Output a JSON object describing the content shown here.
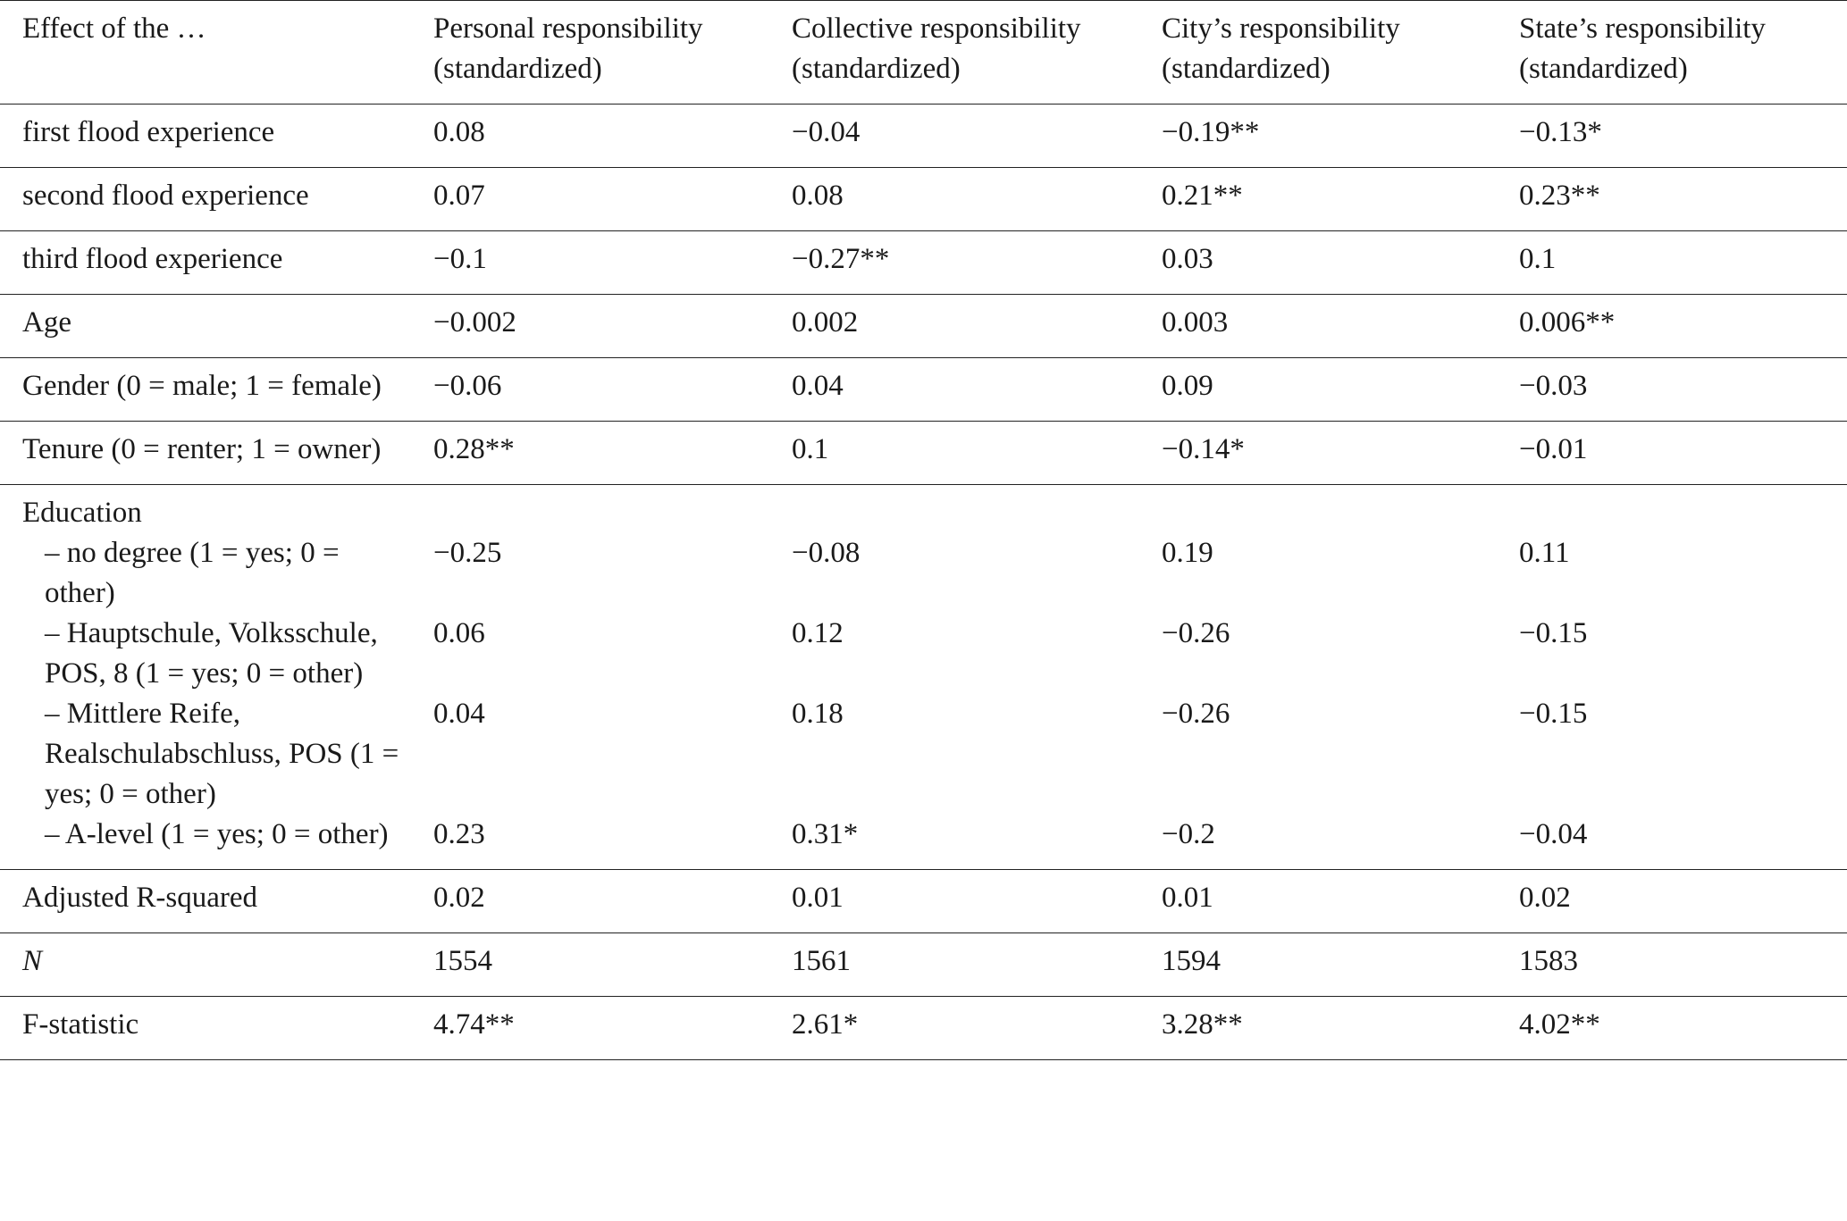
{
  "table": {
    "header": [
      "Effect of the …",
      "Personal responsibility (standardized)",
      "Collective responsibility (standardized)",
      "City’s responsibility (standardized)",
      "State’s responsibility (standardized)"
    ],
    "rows": [
      {
        "label": "first flood experience",
        "values": [
          "0.08",
          "−0.04",
          "−0.19**",
          "−0.13*"
        ]
      },
      {
        "label": "second flood experience",
        "values": [
          "0.07",
          "0.08",
          "0.21**",
          "0.23**"
        ]
      },
      {
        "label": "third flood experience",
        "values": [
          "−0.1",
          "−0.27**",
          "0.03",
          "0.1"
        ]
      },
      {
        "label": "Age",
        "values": [
          "−0.002",
          "0.002",
          "0.003",
          "0.006**"
        ]
      },
      {
        "label": "Gender (0 = male; 1 = female)",
        "values": [
          "−0.06",
          "0.04",
          "0.09",
          "−0.03"
        ]
      },
      {
        "label": "Tenure (0 = renter; 1 = owner)",
        "values": [
          "0.28**",
          "0.1",
          "−0.14*",
          "−0.01"
        ]
      },
      {
        "label": "Education",
        "subrows": [
          {
            "label": "– no degree (1 = yes; 0 = other)",
            "values": [
              "−0.25",
              "−0.08",
              "0.19",
              "0.11"
            ]
          },
          {
            "label": "– Hauptschule, Volksschule, POS, 8 (1 = yes; 0 = other)",
            "values": [
              "0.06",
              "0.12",
              "−0.26",
              "−0.15"
            ]
          },
          {
            "label": "– Mittlere Reife, Realschulabschluss, POS (1 = yes; 0 = other)",
            "values": [
              "0.04",
              "0.18",
              "−0.26",
              "−0.15"
            ]
          },
          {
            "label": "– A-level (1 = yes; 0 = other)",
            "values": [
              "0.23",
              "0.31*",
              "−0.2",
              "−0.04"
            ]
          }
        ]
      },
      {
        "label": "Adjusted R-squared",
        "values": [
          "0.02",
          "0.01",
          "0.01",
          "0.02"
        ]
      },
      {
        "label": "N",
        "values": [
          "1554",
          "1561",
          "1594",
          "1583"
        ]
      },
      {
        "label": "F-statistic",
        "values": [
          "4.74**",
          "2.61*",
          "3.28**",
          "4.02**"
        ]
      }
    ]
  }
}
